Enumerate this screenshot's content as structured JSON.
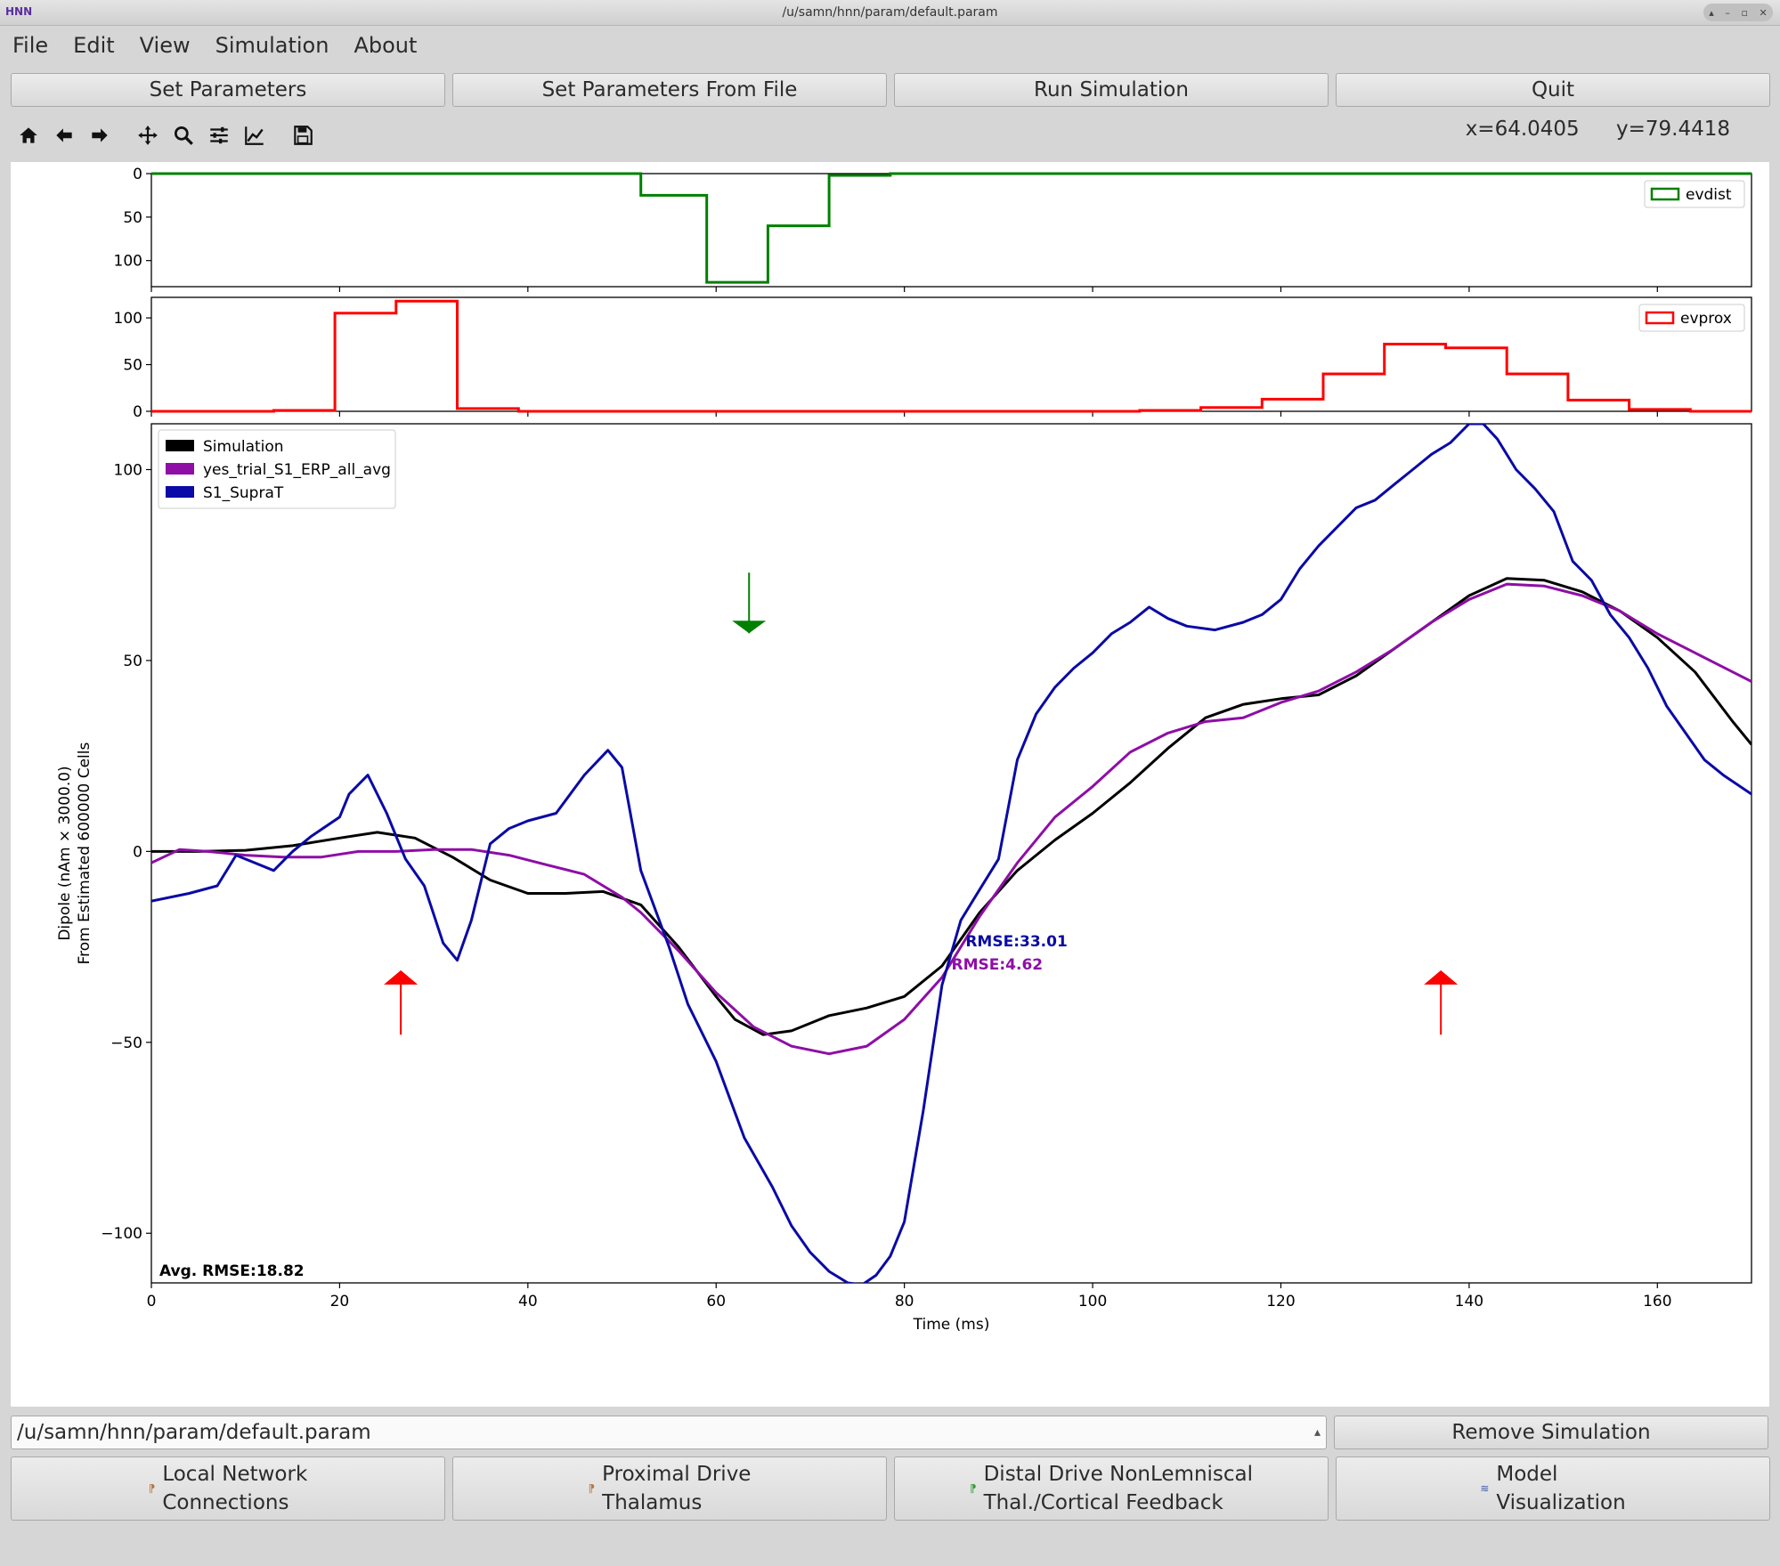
{
  "window": {
    "title": "/u/samn/hnn/param/default.param",
    "logo": "HNN"
  },
  "menu": [
    "File",
    "Edit",
    "View",
    "Simulation",
    "About"
  ],
  "buttons": {
    "set_params": "Set Parameters",
    "set_params_file": "Set Parameters From File",
    "run": "Run Simulation",
    "quit": "Quit"
  },
  "toolbar_icons": [
    "home-icon",
    "back-icon",
    "forward-icon",
    "pan-icon",
    "zoom-icon",
    "configure-subplots-icon",
    "edit-axis-icon",
    "save-icon"
  ],
  "coords": {
    "x": "x=64.0405",
    "y": "y=79.4418"
  },
  "bottom": {
    "param_file": "/u/samn/hnn/param/default.param",
    "remove": "Remove Simulation",
    "views": [
      {
        "line1": "Local Network",
        "line2": "Connections"
      },
      {
        "line1": "Proximal Drive",
        "line2": "Thalamus"
      },
      {
        "line1": "Distal Drive NonLemniscal",
        "line2": "Thal./Cortical Feedback"
      },
      {
        "line1": "Model",
        "line2": "Visualization"
      }
    ]
  },
  "chart_data": [
    {
      "type": "line",
      "legend": "evdist",
      "color": "#008000",
      "step": true,
      "x": [
        0,
        52,
        52,
        59,
        59,
        65.5,
        65.5,
        72,
        72,
        78.5,
        78.5,
        170
      ],
      "y": [
        0,
        0,
        25,
        25,
        125,
        125,
        60,
        60,
        2,
        2,
        0,
        0
      ],
      "yticks": [
        0,
        50,
        100
      ],
      "ylim": [
        0,
        130
      ],
      "inverted": true,
      "xlim": [
        0,
        170
      ]
    },
    {
      "type": "line",
      "legend": "evprox",
      "color": "#ff0000",
      "step": true,
      "x": [
        0,
        13,
        13,
        19.5,
        19.5,
        26,
        26,
        32.5,
        32.5,
        39,
        39,
        105,
        105,
        111.5,
        111.5,
        118,
        118,
        124.5,
        124.5,
        131,
        131,
        137.5,
        137.5,
        144,
        144,
        150.5,
        150.5,
        157,
        157,
        163.5,
        163.5,
        170
      ],
      "y": [
        0,
        0,
        1,
        1,
        105,
        105,
        118,
        118,
        3,
        3,
        0,
        0,
        1,
        1,
        4,
        4,
        13,
        13,
        40,
        40,
        72,
        72,
        68,
        68,
        40,
        40,
        12,
        12,
        2,
        2,
        0,
        0
      ],
      "yticks": [
        0,
        50,
        100
      ],
      "ylim": [
        0,
        122
      ],
      "xlim": [
        0,
        170
      ]
    },
    {
      "type": "line",
      "xlabel": "Time (ms)",
      "ylabel_lines": [
        "Dipole (nAm × 3000.0)",
        "From Estimated 600000 Cells"
      ],
      "xlim": [
        0,
        170
      ],
      "ylim": [
        -113,
        112
      ],
      "xticks": [
        0,
        20,
        40,
        60,
        80,
        100,
        120,
        140,
        160
      ],
      "yticks": [
        -100,
        -50,
        0,
        50,
        100
      ],
      "ytick_labels": [
        "−100",
        "−50",
        "0",
        "50",
        "100"
      ],
      "series": [
        {
          "name": "Simulation",
          "color": "#000000",
          "x": [
            0,
            5,
            10,
            15,
            20,
            24,
            28,
            32,
            36,
            40,
            44,
            48,
            52,
            56,
            60,
            62,
            65,
            68,
            72,
            76,
            80,
            84,
            88,
            92,
            96,
            100,
            104,
            108,
            112,
            116,
            120,
            124,
            128,
            132,
            136,
            140,
            144,
            148,
            152,
            156,
            160,
            164,
            168,
            170
          ],
          "y": [
            0,
            0,
            0.3,
            1.5,
            3.5,
            5,
            3.5,
            -1.5,
            -7.5,
            -11,
            -11,
            -10.5,
            -14,
            -25,
            -38,
            -44,
            -48,
            -47,
            -43,
            -41,
            -38,
            -30,
            -16,
            -5,
            3,
            10,
            18,
            27,
            35,
            38.5,
            40,
            41,
            46,
            53,
            60,
            67,
            71.5,
            71,
            68,
            63,
            56,
            47,
            34,
            28
          ]
        },
        {
          "name": "yes_trial_S1_ERP_all_avg",
          "color": "#8e0ea6",
          "x": [
            0,
            3,
            6,
            10,
            14,
            18,
            22,
            26,
            30,
            34,
            38,
            42,
            46,
            48,
            50,
            52,
            56,
            60,
            64,
            68,
            72,
            76,
            80,
            84,
            88,
            92,
            96,
            100,
            104,
            108,
            112,
            116,
            120,
            124,
            128,
            132,
            136,
            140,
            144,
            148,
            152,
            156,
            160,
            164,
            168,
            170
          ],
          "y": [
            -3,
            0.5,
            0,
            -1,
            -1.5,
            -1.5,
            0,
            0,
            0.5,
            0.5,
            -1,
            -3.5,
            -6,
            -9,
            -12,
            -16,
            -26,
            -37,
            -46,
            -51,
            -53,
            -51,
            -44,
            -33,
            -17,
            -3,
            9,
            17,
            26,
            31,
            34,
            35,
            39,
            42,
            47,
            53,
            60,
            66,
            70,
            69.5,
            67,
            63,
            57,
            52,
            47,
            44.5
          ]
        },
        {
          "name": "S1_SupraT",
          "color": "#0a0aa6",
          "x": [
            0,
            4,
            7,
            9,
            13,
            15,
            17,
            20,
            21,
            23,
            25,
            27,
            29,
            31,
            32.5,
            34,
            36,
            38,
            40,
            43,
            46,
            48.5,
            50,
            52,
            55,
            57,
            60,
            63,
            66,
            68,
            70,
            72,
            74,
            75.5,
            77,
            78.5,
            80,
            82,
            84,
            86,
            88,
            90,
            92,
            94,
            96,
            98,
            100,
            102,
            104,
            106,
            108,
            110,
            113,
            116,
            118,
            120,
            122,
            124,
            126,
            128,
            130,
            132,
            134,
            136,
            138,
            140,
            141.5,
            143,
            145,
            147,
            149,
            151,
            153,
            155,
            157,
            159,
            161,
            163,
            165,
            167,
            170
          ],
          "y": [
            -13,
            -11,
            -9,
            -1,
            -5,
            0,
            4,
            9,
            15,
            20,
            10,
            -2,
            -9,
            -24,
            -28.5,
            -18,
            2,
            6,
            8,
            10,
            20,
            26.5,
            22,
            -5,
            -25,
            -40,
            -55,
            -75,
            -88,
            -98,
            -105,
            -110,
            -113,
            -113.5,
            -111,
            -106,
            -97,
            -68,
            -35,
            -18,
            -10,
            -2,
            24,
            36,
            43,
            48,
            52,
            57,
            60,
            64,
            61,
            59,
            58,
            60,
            62,
            66,
            74,
            80,
            85,
            90,
            92,
            96,
            100,
            104,
            107,
            112,
            112,
            108,
            100,
            95,
            89,
            76,
            71,
            62,
            56,
            48,
            38,
            31,
            24,
            20,
            15
          ]
        }
      ],
      "annotations": {
        "rmse_supra": {
          "text": "RMSE:33.01",
          "color": "#0a0aa6"
        },
        "rmse_avg": {
          "text": "RMSE:4.62",
          "color": "#8e0ea6"
        },
        "avg_rmse": {
          "text": "Avg. RMSE:18.82"
        }
      },
      "arrows": [
        {
          "type": "distal",
          "x": 63.5,
          "color": "#008000"
        },
        {
          "type": "proximal",
          "x": 26.5,
          "color": "#ff0000"
        },
        {
          "type": "proximal",
          "x": 137,
          "color": "#ff0000"
        }
      ]
    }
  ]
}
